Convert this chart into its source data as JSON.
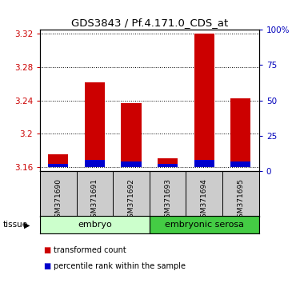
{
  "title": "GDS3843 / Pf.4.171.0_CDS_at",
  "samples": [
    "GSM371690",
    "GSM371691",
    "GSM371692",
    "GSM371693",
    "GSM371694",
    "GSM371695"
  ],
  "transformed_count": [
    3.175,
    3.262,
    3.237,
    3.171,
    3.32,
    3.243
  ],
  "percentile_rank": [
    2.5,
    5.0,
    4.0,
    2.5,
    5.0,
    4.0
  ],
  "baseline": 3.16,
  "ylim_left": [
    3.155,
    3.325
  ],
  "ylim_right": [
    0,
    100
  ],
  "yticks_left": [
    3.16,
    3.2,
    3.24,
    3.28,
    3.32
  ],
  "yticks_right": [
    0,
    25,
    50,
    75,
    100
  ],
  "ytick_labels_right": [
    "0",
    "25",
    "50",
    "75",
    "100%"
  ],
  "tissue_groups": [
    {
      "label": "embryo",
      "start": 0,
      "end": 3,
      "color": "#ccffcc"
    },
    {
      "label": "embryonic serosa",
      "start": 3,
      "end": 6,
      "color": "#44cc44"
    }
  ],
  "bar_color_red": "#cc0000",
  "bar_color_blue": "#0000cc",
  "bar_width": 0.55,
  "bg_plot": "#ffffff",
  "bg_sample_box": "#cccccc",
  "left_tick_color": "#cc0000",
  "right_tick_color": "#0000bb",
  "title_color": "#000000",
  "legend_red_label": "transformed count",
  "legend_blue_label": "percentile rank within the sample",
  "tissue_label": "tissue"
}
